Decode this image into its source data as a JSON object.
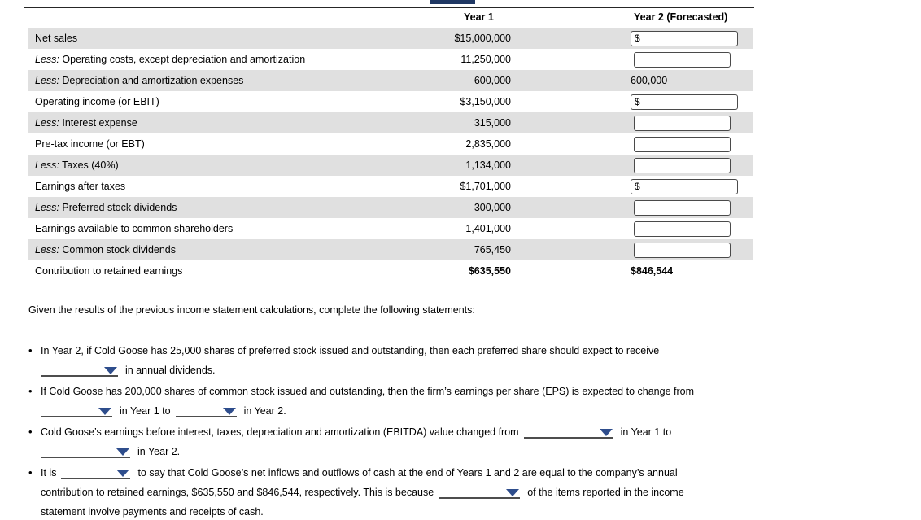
{
  "colors": {
    "alt_row": "#e0e0e0",
    "dropdown_triangle": "#2e4d8c",
    "input_border": "#4a4a4a",
    "top_rule": "#262626",
    "top_fragment": "#203864"
  },
  "bullet_char": "•",
  "table": {
    "col_year1": "Year 1",
    "col_year2": "Year 2 (Forecasted)",
    "dollar_sign": "$",
    "rows": [
      {
        "prefix": "",
        "label": "Net sales",
        "year1": "$15,000,000",
        "year2": {
          "kind": "dollar_input",
          "value": ""
        }
      },
      {
        "prefix": "Less:",
        "label": "Operating costs, except depreciation and amortization",
        "year1": "11,250,000",
        "year2": {
          "kind": "input",
          "value": ""
        }
      },
      {
        "prefix": "Less:",
        "label": "Depreciation and amortization expenses",
        "year1": "600,000",
        "year2": {
          "kind": "text",
          "value": "600,000"
        }
      },
      {
        "prefix": "",
        "label": "Operating income (or EBIT)",
        "year1": "$3,150,000",
        "year2": {
          "kind": "dollar_input",
          "value": ""
        }
      },
      {
        "prefix": "Less:",
        "label": "Interest expense",
        "year1": "315,000",
        "year2": {
          "kind": "input",
          "value": ""
        }
      },
      {
        "prefix": "",
        "label": "Pre-tax income (or EBT)",
        "year1": "2,835,000",
        "year2": {
          "kind": "input",
          "value": ""
        }
      },
      {
        "prefix": "Less:",
        "label": "Taxes (40%)",
        "year1": "1,134,000",
        "year2": {
          "kind": "input",
          "value": ""
        }
      },
      {
        "prefix": "",
        "label": "Earnings after taxes",
        "year1": "$1,701,000",
        "year2": {
          "kind": "dollar_input",
          "value": ""
        }
      },
      {
        "prefix": "Less:",
        "label": "Preferred stock dividends",
        "year1": "300,000",
        "year2": {
          "kind": "input",
          "value": ""
        }
      },
      {
        "prefix": "",
        "label": "Earnings available to common shareholders",
        "year1": "1,401,000",
        "year2": {
          "kind": "input",
          "value": ""
        }
      },
      {
        "prefix": "Less:",
        "label": "Common stock dividends",
        "year1": "765,450",
        "year2": {
          "kind": "input",
          "value": ""
        }
      },
      {
        "prefix": "",
        "label": "Contribution to retained earnings",
        "year1": "$635,550",
        "year2": {
          "kind": "text",
          "value": "$846,544"
        },
        "bold": true
      }
    ]
  },
  "instruction": "Given the results of the previous income statement calculations, complete the following statements:",
  "statements": [
    {
      "tokens": [
        {
          "text": "In Year 2, if Cold Goose has 25,000 shares of preferred stock issued and outstanding, then each preferred share should expect to receive"
        },
        {
          "br": true
        },
        {
          "dd": 95
        },
        {
          "text": "in annual dividends."
        }
      ]
    },
    {
      "tokens": [
        {
          "text": "If Cold Goose has 200,000 shares of common stock issued and outstanding, then the firm’s earnings per share (EPS) is expected to change from"
        },
        {
          "br": true
        },
        {
          "dd": 88
        },
        {
          "text": "in Year 1 to"
        },
        {
          "dd": 75
        },
        {
          "text": "in Year 2."
        }
      ]
    },
    {
      "tokens": [
        {
          "text": "Cold Goose’s earnings before interest, taxes, depreciation and amortization (EBITDA) value changed from"
        },
        {
          "dd": 110
        },
        {
          "text": "in Year 1 to"
        },
        {
          "br": true
        },
        {
          "dd": 110
        },
        {
          "text": "in Year 2."
        }
      ]
    },
    {
      "tokens": [
        {
          "text": "It is"
        },
        {
          "dd": 85
        },
        {
          "text": "to say that Cold Goose’s net inflows and outflows of cash at the end of Years 1 and 2 are equal to the company’s annual"
        },
        {
          "br": true
        },
        {
          "text": "contribution to retained earnings, $635,550 and $846,544, respectively. This is because"
        },
        {
          "dd": 100
        },
        {
          "text": "of the items reported in the income"
        },
        {
          "br": true
        },
        {
          "text": "statement involve payments and receipts of cash."
        }
      ]
    }
  ]
}
